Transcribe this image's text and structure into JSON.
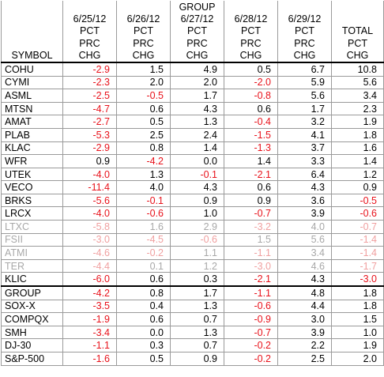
{
  "table": {
    "header": [
      [
        "",
        "",
        "",
        "GROUP",
        "",
        "",
        ""
      ],
      [
        "",
        "6/25/12",
        "6/26/12",
        "6/27/12",
        "6/28/12",
        "6/29/12",
        ""
      ],
      [
        "",
        "PCT",
        "PCT",
        "PCT",
        "PCT",
        "PCT",
        "TOTAL"
      ],
      [
        "",
        "PRC",
        "PRC",
        "PRC",
        "PRC",
        "PRC",
        "PCT"
      ],
      [
        "SYMBOL",
        "CHG",
        "CHG",
        "CHG",
        "CHG",
        "CHG",
        "CHG"
      ]
    ],
    "rows": [
      {
        "cells": [
          "COHU",
          "-2.9",
          "1.5",
          "4.9",
          "0.5",
          "6.7",
          "10.8"
        ]
      },
      {
        "cells": [
          "CYMI",
          "-2.3",
          "2.0",
          "2.0",
          "-2.0",
          "5.9",
          "5.6"
        ]
      },
      {
        "cells": [
          "ASML",
          "-2.5",
          "-0.5",
          "1.7",
          "-0.8",
          "5.6",
          "3.4"
        ]
      },
      {
        "cells": [
          "MTSN",
          "-4.7",
          "0.6",
          "4.3",
          "0.6",
          "1.7",
          "2.3"
        ]
      },
      {
        "cells": [
          "AMAT",
          "-2.7",
          "0.5",
          "1.3",
          "-0.4",
          "3.2",
          "1.9"
        ]
      },
      {
        "cells": [
          "PLAB",
          "-5.3",
          "2.5",
          "2.4",
          "-1.5",
          "4.1",
          "1.8"
        ]
      },
      {
        "cells": [
          "KLAC",
          "-2.9",
          "0.8",
          "1.4",
          "-1.3",
          "3.7",
          "1.6"
        ]
      },
      {
        "cells": [
          "WFR",
          "0.9",
          "-4.2",
          "0.0",
          "1.4",
          "3.3",
          "1.4"
        ]
      },
      {
        "cells": [
          "UTEK",
          "-4.0",
          "1.3",
          "-0.1",
          "-2.1",
          "6.4",
          "1.2"
        ]
      },
      {
        "cells": [
          "VECO",
          "-11.4",
          "4.0",
          "4.3",
          "0.6",
          "4.3",
          "0.9"
        ]
      },
      {
        "cells": [
          "BRKS",
          "-5.6",
          "-0.1",
          "0.9",
          "0.9",
          "3.6",
          "-0.5"
        ]
      },
      {
        "cells": [
          "LRCX",
          "-4.0",
          "-0.6",
          "1.0",
          "-0.7",
          "3.9",
          "-0.6"
        ]
      },
      {
        "cells": [
          "LTXC",
          "-5.8",
          "1.6",
          "2.9",
          "-3.2",
          "4.0",
          "-0.7"
        ],
        "faded": true
      },
      {
        "cells": [
          "FSII",
          "-3.0",
          "-4.5",
          "-0.6",
          "1.5",
          "5.6",
          "-1.4"
        ],
        "faded": true
      },
      {
        "cells": [
          "ATMI",
          "-4.6",
          "-0.2",
          "1.1",
          "-1.1",
          "3.4",
          "-1.4"
        ],
        "faded": true
      },
      {
        "cells": [
          "TER",
          "-4.4",
          "0.1",
          "1.2",
          "-3.0",
          "4.6",
          "-1.7"
        ],
        "faded": true
      },
      {
        "cells": [
          "KLIC",
          "-6.0",
          "0.6",
          "0.3",
          "-2.1",
          "4.3",
          "-3.0"
        ]
      }
    ],
    "index_rows": [
      {
        "cells": [
          "GROUP",
          "-4.2",
          "0.8",
          "1.7",
          "-1.1",
          "4.8",
          "1.8"
        ]
      },
      {
        "cells": [
          "SOX-X",
          "-3.5",
          "0.4",
          "1.3",
          "-0.6",
          "4.4",
          "1.8"
        ]
      },
      {
        "cells": [
          "COMPQX",
          "-1.9",
          "0.6",
          "0.7",
          "-0.9",
          "3.0",
          "1.5"
        ]
      },
      {
        "cells": [
          "SMH",
          "-3.4",
          "0.0",
          "1.3",
          "-0.7",
          "3.9",
          "1.0"
        ]
      },
      {
        "cells": [
          "DJ-30",
          "-1.1",
          "0.3",
          "0.7",
          "-0.2",
          "2.2",
          "1.9"
        ]
      },
      {
        "cells": [
          "S&P-500",
          "-1.6",
          "0.5",
          "0.9",
          "-0.2",
          "2.5",
          "2.0"
        ]
      }
    ]
  }
}
